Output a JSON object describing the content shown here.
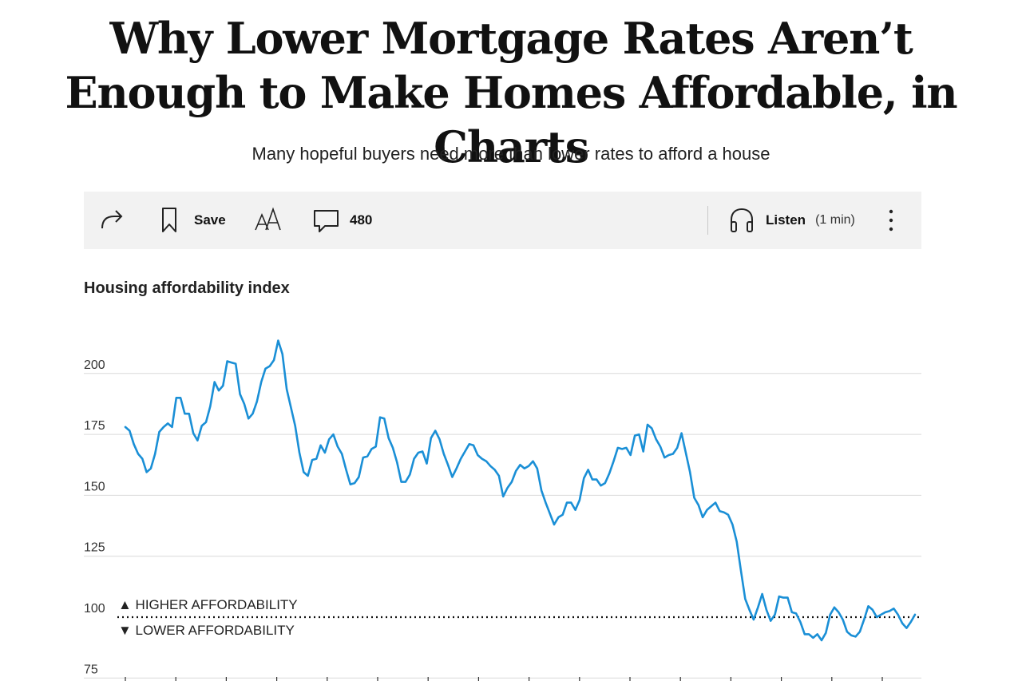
{
  "article": {
    "headline": "Why Lower Mortgage Rates Aren’t Enough to Make Homes Affordable, in Charts",
    "dek": "Many hopeful buyers need more than lower rates to afford a house"
  },
  "toolbar": {
    "save_label": "Save",
    "comment_count": "480",
    "listen_label": "Listen",
    "listen_duration": "(1 min)",
    "icons": [
      "share-icon",
      "bookmark-icon",
      "text-size-icon",
      "comment-icon",
      "headphones-icon",
      "more-icon"
    ]
  },
  "chart_data": {
    "type": "line",
    "title": "Housing affordability index",
    "xlabel": "",
    "ylabel": "",
    "ylim": [
      75,
      215
    ],
    "yticks": [
      75,
      100,
      125,
      150,
      175,
      200
    ],
    "reference_line": 100,
    "annotations": {
      "above": "▲ HIGHER AFFORDABILITY",
      "below": "▼ LOWER AFFORDABILITY"
    },
    "grid": true,
    "color": "#1a8fd6",
    "series": [
      {
        "name": "Housing affordability index",
        "values": [
          178,
          176.5,
          171,
          167,
          165,
          159.5,
          161,
          167,
          176,
          178,
          179.5,
          178,
          190,
          190,
          183.5,
          183.5,
          175.5,
          172.5,
          178.5,
          180,
          186.5,
          196.5,
          193,
          195,
          205,
          204.5,
          204,
          191.5,
          187.5,
          181.5,
          183.5,
          188.5,
          196.5,
          202,
          203,
          205.5,
          213.5,
          208,
          193.5,
          186,
          178.5,
          167.5,
          159.5,
          158,
          164.5,
          165,
          170.5,
          167.5,
          173,
          175,
          170,
          167,
          160.5,
          154.5,
          155,
          157.5,
          165.5,
          166,
          169,
          170,
          182,
          181.5,
          173.5,
          169.5,
          163.5,
          155.5,
          155.5,
          158.5,
          165,
          167.5,
          168,
          163,
          173.5,
          176.5,
          173,
          167,
          162.5,
          157.5,
          161,
          165,
          168,
          171,
          170.5,
          166.5,
          165,
          164,
          162,
          160.5,
          158,
          149.5,
          153,
          155.5,
          160,
          162.5,
          161,
          162,
          164,
          161,
          152,
          147,
          142.5,
          138,
          141,
          142,
          147,
          147,
          144,
          148,
          157,
          160.5,
          156.5,
          156.5,
          154,
          155,
          159,
          164,
          169.5,
          169,
          169.5,
          166.5,
          174.5,
          175,
          168,
          179,
          177.5,
          173,
          170,
          165.5,
          166.5,
          167,
          169.5,
          175.5,
          167.5,
          159.5,
          149,
          146,
          141,
          144,
          145.5,
          147,
          143.5,
          143,
          142,
          138,
          131,
          119,
          107.5,
          103,
          99,
          104,
          109.5,
          103,
          98.5,
          101,
          108.5,
          108,
          108,
          102,
          101.5,
          98,
          93,
          93,
          91.5,
          93,
          90.5,
          93.5,
          101,
          104,
          102,
          99,
          94,
          92.5,
          92,
          94,
          99,
          104.5,
          103,
          100,
          101,
          102,
          102.5,
          103.5,
          101,
          97.5,
          95.5,
          98,
          101
        ]
      }
    ]
  }
}
